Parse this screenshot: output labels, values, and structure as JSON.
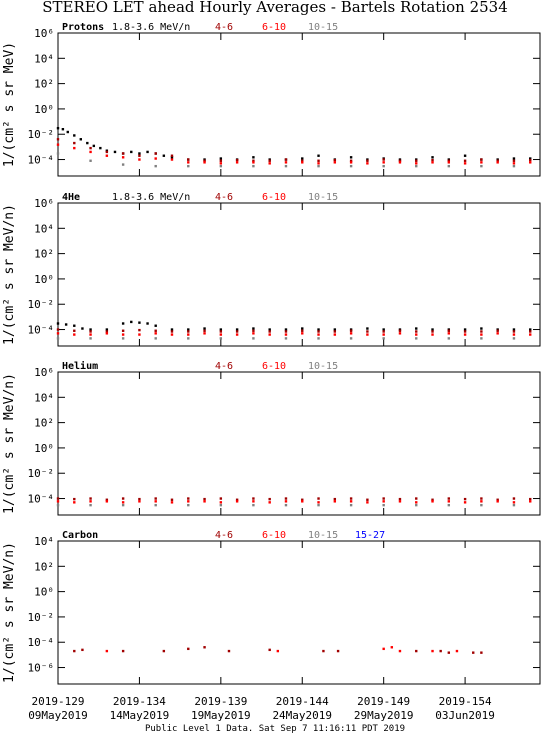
{
  "title": "STEREO LET ahead Hourly Averages - Bartels Rotation 2534",
  "footer": "Public Level 1 Data. Sat Sep  7 11:16:11 PDT 2019",
  "x_axis": {
    "xlim": [
      129,
      158.6
    ],
    "xticks": [
      {
        "value": 129,
        "label": "2019-129"
      },
      {
        "value": 134,
        "label": "2019-134"
      },
      {
        "value": 139,
        "label": "2019-139"
      },
      {
        "value": 144,
        "label": "2019-144"
      },
      {
        "value": 149,
        "label": "2019-149"
      },
      {
        "value": 154,
        "label": "2019-154"
      }
    ],
    "dates": [
      "09May2019",
      "14May2019",
      "19May2019",
      "24May2019",
      "29May2019",
      "03Jun2019"
    ]
  },
  "chart_data": [
    {
      "type": "scatter",
      "label": "Protons",
      "ylabel": "1/(cm² s sr MeV)",
      "log_y": true,
      "ylim": [
        5e-06,
        1000000.0
      ],
      "yticks": [
        {
          "value": 1000000.0,
          "label": "10⁶"
        },
        {
          "value": 10000.0,
          "label": "10⁴"
        },
        {
          "value": 100,
          "label": "10²"
        },
        {
          "value": 1,
          "label": "10⁰"
        },
        {
          "value": 0.01,
          "label": "10⁻²"
        },
        {
          "value": 0.0001,
          "label": "10⁻⁴"
        }
      ],
      "series": [
        {
          "name": "1.8-3.6 MeV/n",
          "color": "#000000",
          "x": [
            129,
            129.3,
            129.6,
            130,
            130.4,
            130.8,
            131.2,
            131.6,
            132,
            132.5,
            133,
            133.5,
            134,
            134.5,
            135,
            135.5,
            136,
            137,
            138,
            139,
            140,
            141,
            142,
            143,
            144,
            145,
            146,
            147,
            148,
            149,
            150,
            151,
            152,
            153,
            154,
            155,
            156,
            157,
            158
          ],
          "values": [
            0.03,
            0.025,
            0.015,
            0.008,
            0.004,
            0.002,
            0.0012,
            0.0008,
            0.0005,
            0.0004,
            0.0003,
            0.0004,
            0.0003,
            0.0004,
            0.0003,
            0.0002,
            0.00015,
            0.0001,
            0.0001,
            0.00012,
            0.0001,
            0.00015,
            0.0001,
            0.0001,
            0.00012,
            0.0002,
            0.0001,
            0.00015,
            0.0001,
            0.00012,
            0.0001,
            0.0001,
            0.00015,
            0.0001,
            0.0002,
            0.0001,
            0.0001,
            0.00012,
            0.00012
          ]
        },
        {
          "name": "4-6",
          "color": "#a00000",
          "x": [
            129,
            130,
            131,
            132,
            133,
            134,
            135,
            136,
            137,
            138,
            139,
            140,
            141,
            142,
            143,
            144,
            145,
            146,
            147,
            148,
            149,
            150,
            151,
            152,
            153,
            154,
            155,
            156,
            157,
            158
          ],
          "values": [
            0.004,
            0.002,
            0.0008,
            0.0004,
            0.0003,
            0.0002,
            0.0003,
            0.0002,
            0.0001,
            8e-05,
            8e-05,
            9e-05,
            8e-05,
            8e-05,
            0.0001,
            8e-05,
            8e-05,
            9e-05,
            8e-05,
            8e-05,
            0.0001,
            8e-05,
            8e-05,
            9e-05,
            8e-05,
            8e-05,
            0.0001,
            8e-05,
            8e-05,
            9e-05
          ]
        },
        {
          "name": "6-10",
          "color": "#ff0000",
          "x": [
            129,
            130,
            131,
            132,
            133,
            134,
            135,
            136,
            137,
            138,
            139,
            140,
            141,
            142,
            143,
            144,
            145,
            146,
            147,
            148,
            149,
            150,
            151,
            152,
            153,
            154,
            155,
            156,
            157,
            158
          ],
          "values": [
            0.0015,
            0.0008,
            0.0004,
            0.0002,
            0.00015,
            0.0001,
            0.00012,
            0.0001,
            6e-05,
            6e-05,
            5e-05,
            6e-05,
            6e-05,
            5e-05,
            6e-05,
            6e-05,
            5e-05,
            6e-05,
            6e-05,
            5e-05,
            6e-05,
            6e-05,
            5e-05,
            6e-05,
            6e-05,
            5e-05,
            6e-05,
            6e-05,
            5e-05,
            6e-05
          ]
        },
        {
          "name": "10-15",
          "color": "#808080",
          "x": [
            129,
            131,
            133,
            135,
            137,
            139,
            141,
            143,
            145,
            147,
            149,
            151,
            153,
            155,
            157
          ],
          "values": [
            0.0003,
            8e-05,
            4e-05,
            3e-05,
            3e-05,
            3e-05,
            3e-05,
            3e-05,
            3e-05,
            3e-05,
            3e-05,
            3e-05,
            3e-05,
            3e-05,
            3e-05
          ]
        }
      ]
    },
    {
      "type": "scatter",
      "label": "4He",
      "ylabel": "1/(cm² s sr MeV/n)",
      "log_y": true,
      "ylim": [
        5e-06,
        1000000.0
      ],
      "yticks": [
        {
          "value": 1000000.0,
          "label": "10⁶"
        },
        {
          "value": 10000.0,
          "label": "10⁴"
        },
        {
          "value": 100,
          "label": "10²"
        },
        {
          "value": 1,
          "label": "10⁰"
        },
        {
          "value": 0.01,
          "label": "10⁻²"
        },
        {
          "value": 0.0001,
          "label": "10⁻⁴"
        }
      ],
      "series": [
        {
          "name": "1.8-3.6 MeV/n",
          "color": "#000000",
          "x": [
            129,
            129.5,
            130,
            130.5,
            131,
            132,
            133,
            133.5,
            134,
            134.5,
            135,
            136,
            137,
            138,
            139,
            140,
            141,
            142,
            143,
            144,
            145,
            146,
            147,
            148,
            149,
            150,
            151,
            152,
            153,
            154,
            155,
            156,
            157,
            158
          ],
          "values": [
            0.0003,
            0.00025,
            0.0002,
            0.00012,
            0.0001,
            0.0001,
            0.0003,
            0.0004,
            0.00035,
            0.0003,
            0.0002,
            0.0001,
            0.0001,
            0.00012,
            0.0001,
            0.0001,
            0.00012,
            0.0001,
            0.0001,
            0.00012,
            0.0001,
            0.0001,
            0.0001,
            0.00012,
            0.0001,
            0.0001,
            0.00012,
            0.0001,
            0.0001,
            0.0001,
            0.00012,
            0.0001,
            0.0001,
            0.0001
          ]
        },
        {
          "name": "4-6",
          "color": "#a00000",
          "x": [
            129,
            130,
            131,
            132,
            133,
            134,
            135,
            136,
            137,
            138,
            139,
            140,
            141,
            142,
            143,
            144,
            145,
            146,
            147,
            148,
            149,
            150,
            151,
            152,
            153,
            154,
            155,
            156,
            157,
            158
          ],
          "values": [
            0.0001,
            8e-05,
            7e-05,
            7e-05,
            8e-05,
            9e-05,
            8e-05,
            7e-05,
            7e-05,
            8e-05,
            7e-05,
            7e-05,
            8e-05,
            7e-05,
            7e-05,
            8e-05,
            7e-05,
            7e-05,
            8e-05,
            7e-05,
            7e-05,
            8e-05,
            7e-05,
            7e-05,
            8e-05,
            7e-05,
            7e-05,
            8e-05,
            7e-05,
            7e-05
          ]
        },
        {
          "name": "6-10",
          "color": "#ff0000",
          "x": [
            129,
            130,
            131,
            132,
            133,
            134,
            135,
            136,
            137,
            138,
            139,
            140,
            141,
            142,
            143,
            144,
            145,
            146,
            147,
            148,
            149,
            150,
            151,
            152,
            153,
            154,
            155,
            156,
            157,
            158
          ],
          "values": [
            5e-05,
            4e-05,
            4e-05,
            5e-05,
            4e-05,
            4e-05,
            5e-05,
            4e-05,
            4e-05,
            5e-05,
            4e-05,
            4e-05,
            5e-05,
            4e-05,
            4e-05,
            5e-05,
            4e-05,
            4e-05,
            5e-05,
            4e-05,
            4e-05,
            5e-05,
            4e-05,
            4e-05,
            5e-05,
            4e-05,
            4e-05,
            5e-05,
            4e-05,
            4e-05
          ]
        },
        {
          "name": "10-15",
          "color": "#808080",
          "x": [
            129,
            131,
            133,
            135,
            137,
            139,
            141,
            143,
            145,
            147,
            149,
            151,
            153,
            155,
            157
          ],
          "values": [
            2e-05,
            2e-05,
            2e-05,
            2e-05,
            2e-05,
            2e-05,
            2e-05,
            2e-05,
            2e-05,
            2e-05,
            2e-05,
            2e-05,
            2e-05,
            2e-05,
            2e-05
          ]
        }
      ]
    },
    {
      "type": "scatter",
      "label": "Helium",
      "ylabel": "1/(cm² s sr MeV/n)",
      "log_y": true,
      "ylim": [
        5e-06,
        1000000.0
      ],
      "yticks": [
        {
          "value": 1000000.0,
          "label": "10⁶"
        },
        {
          "value": 10000.0,
          "label": "10⁴"
        },
        {
          "value": 100,
          "label": "10²"
        },
        {
          "value": 1,
          "label": "10⁰"
        },
        {
          "value": 0.01,
          "label": "10⁻²"
        },
        {
          "value": 0.0001,
          "label": "10⁻⁴"
        }
      ],
      "series": [
        {
          "name": "4-6",
          "color": "#a00000",
          "x": [
            129,
            130,
            131,
            132,
            133,
            134,
            135,
            136,
            137,
            138,
            139,
            140,
            141,
            142,
            143,
            144,
            145,
            146,
            147,
            148,
            149,
            150,
            151,
            152,
            153,
            154,
            155,
            156,
            157,
            158
          ],
          "values": [
            0.0001,
            9e-05,
            0.0001,
            8e-05,
            0.0001,
            9e-05,
            0.0001,
            8e-05,
            0.0001,
            9e-05,
            0.0001,
            8e-05,
            0.0001,
            9e-05,
            0.0001,
            8e-05,
            0.0001,
            9e-05,
            0.0001,
            8e-05,
            0.0001,
            9e-05,
            0.0001,
            8e-05,
            0.0001,
            9e-05,
            0.0001,
            8e-05,
            0.0001,
            9e-05
          ]
        },
        {
          "name": "6-10",
          "color": "#ff0000",
          "x": [
            129,
            130,
            131,
            132,
            133,
            134,
            135,
            136,
            137,
            138,
            139,
            140,
            141,
            142,
            143,
            144,
            145,
            146,
            147,
            148,
            149,
            150,
            151,
            152,
            153,
            154,
            155,
            156,
            157,
            158
          ],
          "values": [
            6e-05,
            5e-05,
            6e-05,
            6e-05,
            5e-05,
            6e-05,
            6e-05,
            5e-05,
            6e-05,
            6e-05,
            5e-05,
            6e-05,
            6e-05,
            5e-05,
            6e-05,
            6e-05,
            5e-05,
            6e-05,
            6e-05,
            5e-05,
            6e-05,
            6e-05,
            5e-05,
            6e-05,
            6e-05,
            5e-05,
            6e-05,
            6e-05,
            5e-05,
            6e-05
          ]
        },
        {
          "name": "10-15",
          "color": "#808080",
          "x": [
            129,
            131,
            133,
            135,
            137,
            139,
            141,
            143,
            145,
            147,
            149,
            151,
            153,
            155,
            157
          ],
          "values": [
            3e-05,
            3e-05,
            3e-05,
            3e-05,
            3e-05,
            3e-05,
            3e-05,
            3e-05,
            3e-05,
            3e-05,
            3e-05,
            3e-05,
            3e-05,
            3e-05,
            3e-05
          ]
        }
      ]
    },
    {
      "type": "scatter",
      "label": "Carbon",
      "ylabel": "1/(cm² s sr MeV/n)",
      "log_y": true,
      "ylim": [
        5e-08,
        10000.0
      ],
      "yticks": [
        {
          "value": 10000.0,
          "label": "10⁴"
        },
        {
          "value": 100,
          "label": "10²"
        },
        {
          "value": 1,
          "label": "10⁰"
        },
        {
          "value": 0.01,
          "label": "10⁻²"
        },
        {
          "value": 0.0001,
          "label": "10⁻⁴"
        },
        {
          "value": 1e-06,
          "label": "10⁻⁶"
        }
      ],
      "series": [
        {
          "name": "4-6",
          "color": "#a00000",
          "x": [
            130,
            130.5,
            133,
            135.5,
            137,
            138,
            139.5,
            142,
            145.3,
            146.2,
            151,
            152.5,
            153,
            154.5,
            155
          ],
          "values": [
            2e-05,
            2.5e-05,
            2e-05,
            2e-05,
            3e-05,
            4e-05,
            2e-05,
            2.5e-05,
            2e-05,
            2e-05,
            2e-05,
            2e-05,
            1.5e-05,
            1.5e-05,
            1.5e-05
          ]
        },
        {
          "name": "6-10",
          "color": "#ff0000",
          "x": [
            132,
            142.5,
            149,
            149.5,
            150,
            152,
            153.5
          ],
          "values": [
            2e-05,
            2e-05,
            3e-05,
            4e-05,
            2e-05,
            2e-05,
            2e-05
          ]
        },
        {
          "name": "10-15",
          "color": "#808080",
          "x": [],
          "values": []
        },
        {
          "name": "15-27",
          "color": "#0000ff",
          "x": [],
          "values": []
        }
      ]
    }
  ]
}
